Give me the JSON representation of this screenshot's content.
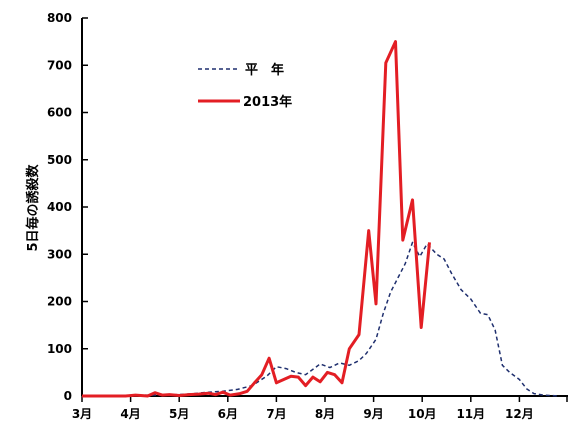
{
  "chart_data": {
    "type": "line",
    "title": "",
    "xlabel": "",
    "ylabel": "5日毎の誘殺数",
    "ylim": [
      0,
      800
    ],
    "yticks": [
      0,
      100,
      200,
      300,
      400,
      500,
      600,
      700,
      800
    ],
    "xlim": [
      3.0,
      13.0
    ],
    "xticks": [
      {
        "value": 3.0,
        "label": "3月"
      },
      {
        "value": 4.0,
        "label": "4月"
      },
      {
        "value": 5.0,
        "label": "5月"
      },
      {
        "value": 6.0,
        "label": "6月"
      },
      {
        "value": 7.0,
        "label": "7月"
      },
      {
        "value": 8.0,
        "label": "8月"
      },
      {
        "value": 9.0,
        "label": "9月"
      },
      {
        "value": 10.0,
        "label": "10月"
      },
      {
        "value": 11.0,
        "label": "11月"
      },
      {
        "value": 12.0,
        "label": "12月"
      }
    ],
    "grid": false,
    "legend_position": "upper-left-inside",
    "series": [
      {
        "name": "平　年",
        "style": "dashed",
        "color": "#1f2f6e",
        "points": [
          [
            3.0,
            0
          ],
          [
            3.5,
            0
          ],
          [
            4.0,
            1
          ],
          [
            4.3,
            2
          ],
          [
            4.6,
            2
          ],
          [
            5.0,
            3
          ],
          [
            5.3,
            5
          ],
          [
            5.6,
            8
          ],
          [
            5.9,
            10
          ],
          [
            6.2,
            14
          ],
          [
            6.5,
            22
          ],
          [
            6.8,
            42
          ],
          [
            7.0,
            62
          ],
          [
            7.2,
            58
          ],
          [
            7.4,
            50
          ],
          [
            7.6,
            45
          ],
          [
            7.8,
            60
          ],
          [
            7.9,
            68
          ],
          [
            8.1,
            60
          ],
          [
            8.3,
            70
          ],
          [
            8.5,
            65
          ],
          [
            8.7,
            75
          ],
          [
            8.85,
            90
          ],
          [
            9.05,
            120
          ],
          [
            9.2,
            175
          ],
          [
            9.35,
            220
          ],
          [
            9.5,
            250
          ],
          [
            9.65,
            280
          ],
          [
            9.8,
            325
          ],
          [
            9.95,
            295
          ],
          [
            10.1,
            322
          ],
          [
            10.3,
            300
          ],
          [
            10.45,
            290
          ],
          [
            10.6,
            260
          ],
          [
            10.8,
            225
          ],
          [
            11.0,
            205
          ],
          [
            11.2,
            175
          ],
          [
            11.35,
            172
          ],
          [
            11.5,
            140
          ],
          [
            11.65,
            65
          ],
          [
            11.8,
            50
          ],
          [
            12.0,
            35
          ],
          [
            12.15,
            15
          ],
          [
            12.3,
            5
          ],
          [
            12.5,
            2
          ],
          [
            12.8,
            0
          ]
        ]
      },
      {
        "name": "2013年",
        "style": "solid",
        "color": "#e31e24",
        "points": [
          [
            3.0,
            0
          ],
          [
            3.3,
            0
          ],
          [
            3.6,
            0
          ],
          [
            3.9,
            0
          ],
          [
            4.1,
            2
          ],
          [
            4.35,
            0
          ],
          [
            4.5,
            7
          ],
          [
            4.65,
            2
          ],
          [
            4.8,
            3
          ],
          [
            5.0,
            1
          ],
          [
            5.2,
            3
          ],
          [
            5.4,
            4
          ],
          [
            5.6,
            6
          ],
          [
            5.75,
            3
          ],
          [
            5.9,
            8
          ],
          [
            6.05,
            2
          ],
          [
            6.25,
            5
          ],
          [
            6.4,
            10
          ],
          [
            6.55,
            28
          ],
          [
            6.7,
            45
          ],
          [
            6.85,
            80
          ],
          [
            7.0,
            28
          ],
          [
            7.15,
            35
          ],
          [
            7.3,
            42
          ],
          [
            7.45,
            40
          ],
          [
            7.6,
            22
          ],
          [
            7.75,
            40
          ],
          [
            7.9,
            30
          ],
          [
            8.05,
            50
          ],
          [
            8.2,
            45
          ],
          [
            8.35,
            28
          ],
          [
            8.5,
            100
          ],
          [
            8.7,
            130
          ],
          [
            8.9,
            350
          ],
          [
            9.05,
            195
          ],
          [
            9.25,
            705
          ],
          [
            9.45,
            750
          ],
          [
            9.6,
            330
          ],
          [
            9.8,
            415
          ],
          [
            9.98,
            145
          ],
          [
            10.15,
            325
          ]
        ]
      }
    ]
  }
}
